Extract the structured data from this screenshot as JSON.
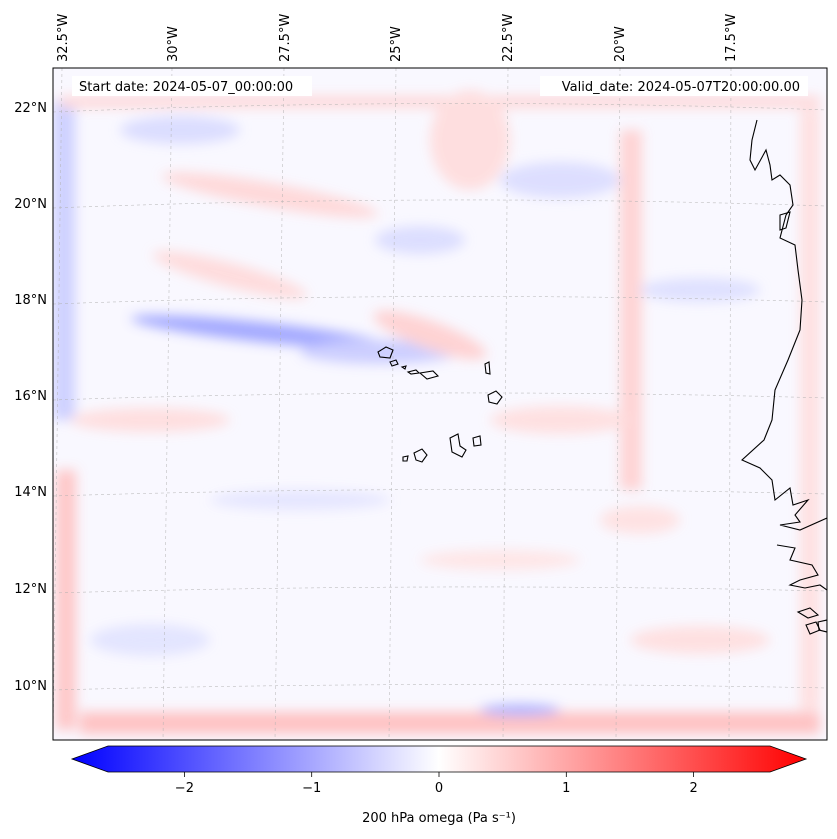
{
  "header": {
    "start_date": "Start date: 2024-05-07_00:00:00",
    "valid_date": "Valid_date: 2024-05-07T20:00:00.00"
  },
  "map": {
    "field": "200 hPa omega",
    "lon_labels": [
      "32.5°W",
      "30°W",
      "27.5°W",
      "25°W",
      "22.5°W",
      "20°W",
      "17.5°W"
    ],
    "lat_labels": [
      "22°N",
      "20°N",
      "18°N",
      "16°N",
      "14°N",
      "12°N",
      "10°N"
    ],
    "gridlines": "dashed light gray",
    "coastline_color": "#000000"
  },
  "colorbar": {
    "label": "200 hPa omega (Pa s⁻¹)",
    "colormap": "bwr",
    "min": -2.6,
    "max": 2.6,
    "extend": "both",
    "tick_labels": [
      "−2",
      "−1",
      "0",
      "1",
      "2"
    ],
    "tick_values": [
      -2,
      -1,
      0,
      1,
      2
    ],
    "colors": {
      "negative": "#0000ff",
      "zero": "#ffffff",
      "positive": "#ff0000"
    }
  }
}
